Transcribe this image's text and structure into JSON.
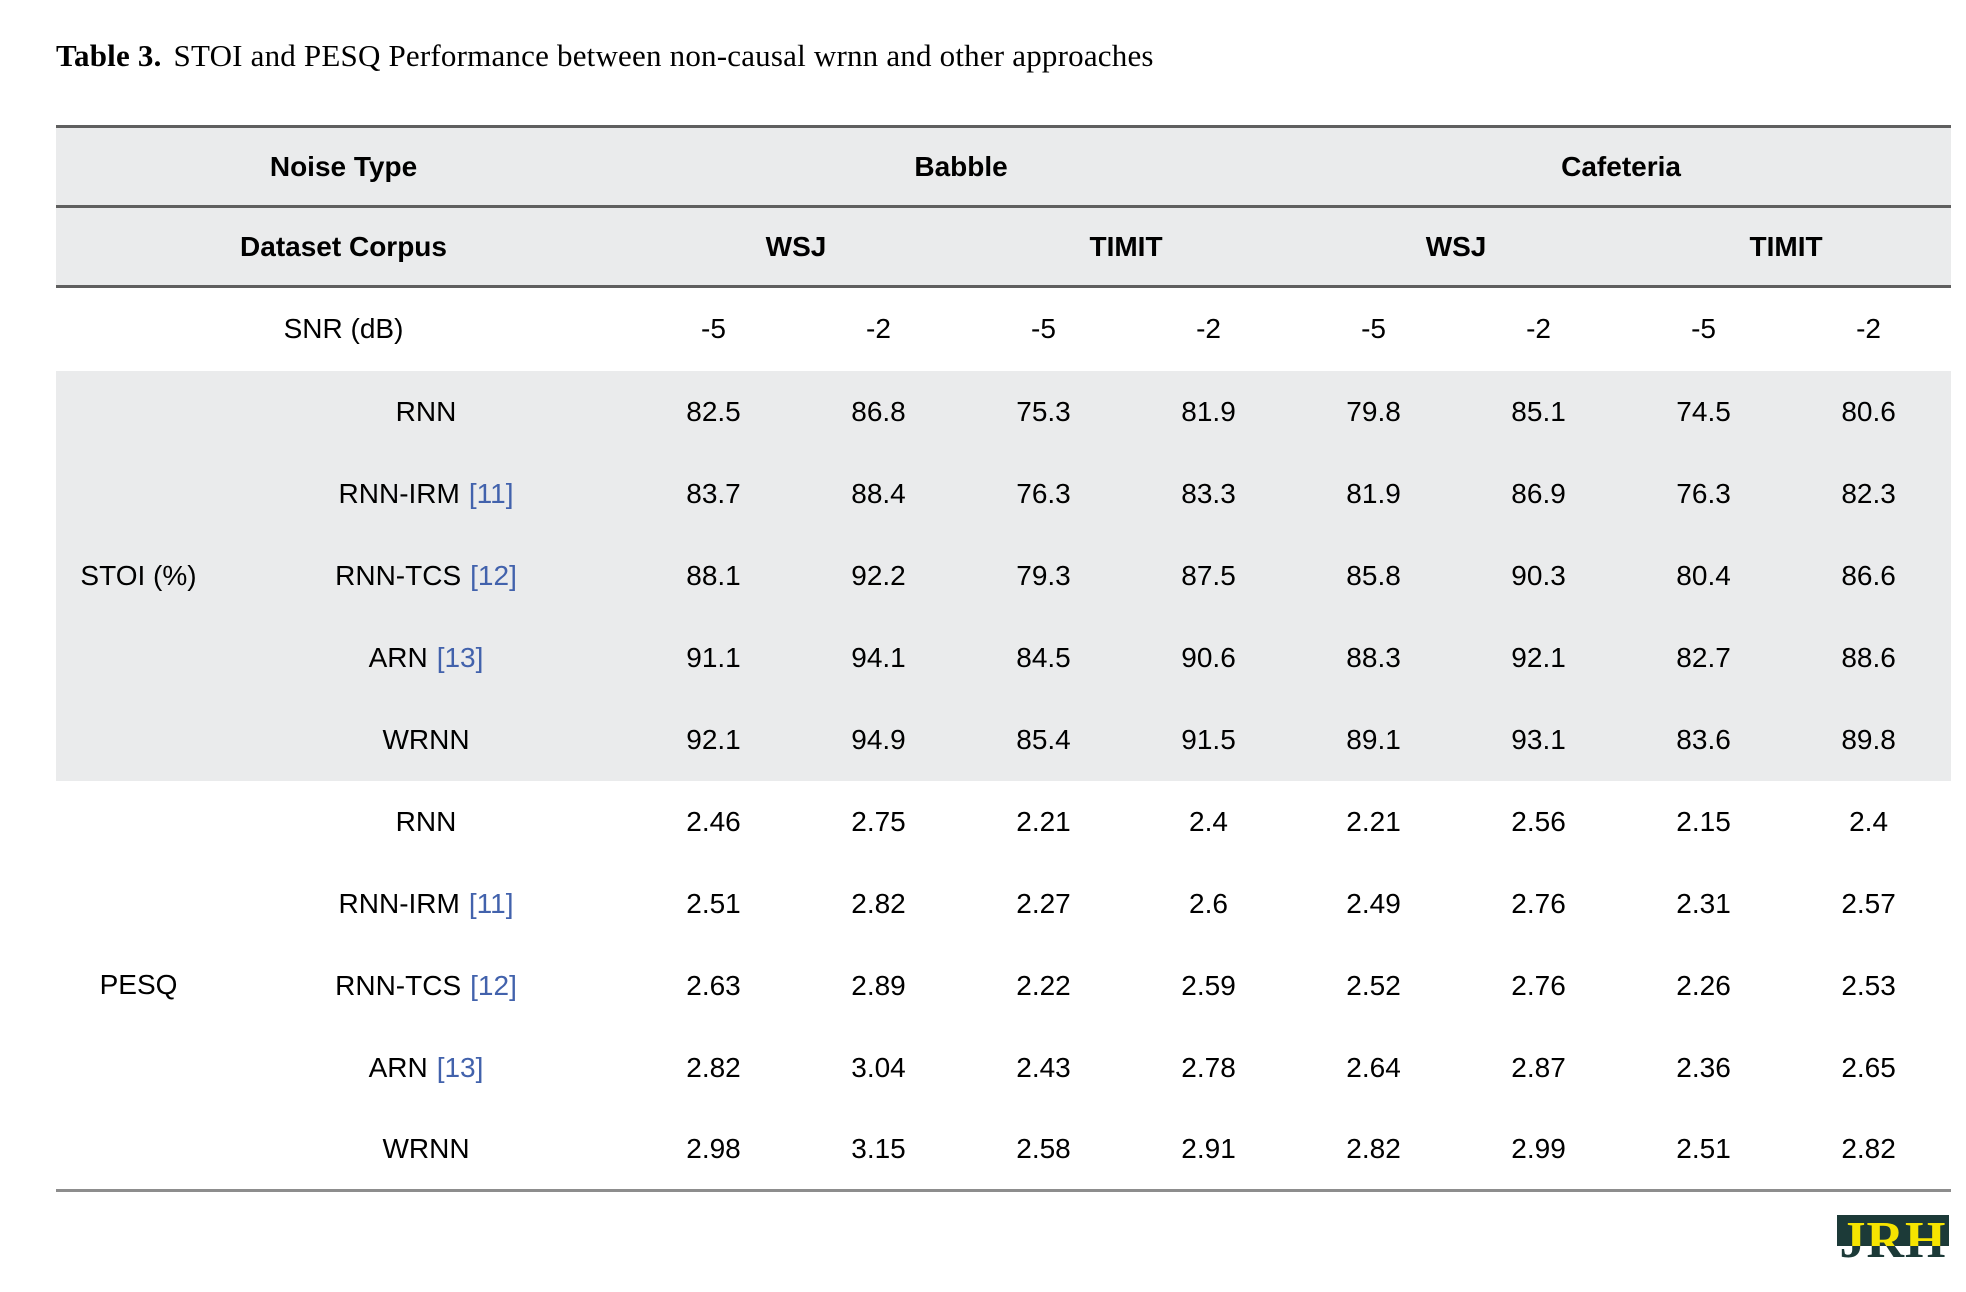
{
  "caption": {
    "label": "Table 3.",
    "text": "STOI and PESQ Performance between non-causal wrnn and other approaches"
  },
  "header": {
    "noise_type_label": "Noise Type",
    "noise_types": [
      "Babble",
      "Cafeteria"
    ],
    "dataset_label": "Dataset Corpus",
    "corpora": [
      "WSJ",
      "TIMIT",
      "WSJ",
      "TIMIT"
    ],
    "snr_label": "SNR (dB)",
    "snr_values": [
      "-5",
      "-2",
      "-5",
      "-2",
      "-5",
      "-2",
      "-5",
      "-2"
    ]
  },
  "table": {
    "sections": [
      {
        "metric": "STOI (%)",
        "rows": [
          {
            "method": "RNN",
            "cite": "",
            "values": [
              "82.5",
              "86.8",
              "75.3",
              "81.9",
              "79.8",
              "85.1",
              "74.5",
              "80.6"
            ]
          },
          {
            "method": "RNN-IRM",
            "cite": "[11]",
            "values": [
              "83.7",
              "88.4",
              "76.3",
              "83.3",
              "81.9",
              "86.9",
              "76.3",
              "82.3"
            ]
          },
          {
            "method": "RNN-TCS",
            "cite": "[12]",
            "values": [
              "88.1",
              "92.2",
              "79.3",
              "87.5",
              "85.8",
              "90.3",
              "80.4",
              "86.6"
            ]
          },
          {
            "method": "ARN",
            "cite": "[13]",
            "values": [
              "91.1",
              "94.1",
              "84.5",
              "90.6",
              "88.3",
              "92.1",
              "82.7",
              "88.6"
            ]
          },
          {
            "method": "WRNN",
            "cite": "",
            "values": [
              "92.1",
              "94.9",
              "85.4",
              "91.5",
              "89.1",
              "93.1",
              "83.6",
              "89.8"
            ]
          }
        ]
      },
      {
        "metric": "PESQ",
        "rows": [
          {
            "method": "RNN",
            "cite": "",
            "values": [
              "2.46",
              "2.75",
              "2.21",
              "2.4",
              "2.21",
              "2.56",
              "2.15",
              "2.4"
            ]
          },
          {
            "method": "RNN-IRM",
            "cite": "[11]",
            "values": [
              "2.51",
              "2.82",
              "2.27",
              "2.6",
              "2.49",
              "2.76",
              "2.31",
              "2.57"
            ]
          },
          {
            "method": "RNN-TCS",
            "cite": "[12]",
            "values": [
              "2.63",
              "2.89",
              "2.22",
              "2.59",
              "2.52",
              "2.76",
              "2.26",
              "2.53"
            ]
          },
          {
            "method": "ARN",
            "cite": "[13]",
            "values": [
              "2.82",
              "3.04",
              "2.43",
              "2.78",
              "2.64",
              "2.87",
              "2.36",
              "2.65"
            ]
          },
          {
            "method": "WRNN",
            "cite": "",
            "values": [
              "2.98",
              "3.15",
              "2.58",
              "2.91",
              "2.82",
              "2.99",
              "2.51",
              "2.82"
            ]
          }
        ]
      }
    ]
  },
  "logo": {
    "text": "JRH"
  },
  "colors": {
    "page_background": "#ffffff",
    "row_band_gray": "#eaebec",
    "rule_dark_gray": "#5f5f5f",
    "rule_bottom_gray": "#8d8d8d",
    "citation_blue": "#4262ac",
    "logo_yellow": "#f6e400",
    "logo_teal": "#1c3a38"
  }
}
